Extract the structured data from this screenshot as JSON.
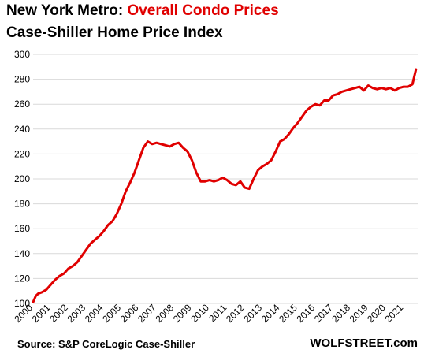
{
  "header": {
    "title_prefix": "New York Metro: ",
    "title_highlight": "Overall Condo Prices",
    "subtitle": "Case-Shiller Home Price Index"
  },
  "footer": {
    "source": "Source: S&P CoreLogic Case-Shiller",
    "brand": "WOLFSTREET.com"
  },
  "colors": {
    "line": "#e00000",
    "highlight": "#e00000",
    "grid": "#d9d9d9"
  },
  "chart_data": {
    "type": "line",
    "title": "New York Metro: Overall Condo Prices",
    "subtitle": "Case-Shiller Home Price Index",
    "ylim": [
      100,
      300
    ],
    "yticks": [
      100,
      120,
      140,
      160,
      180,
      200,
      220,
      240,
      260,
      280,
      300
    ],
    "xlim": [
      2000.0,
      2021.8
    ],
    "xticks": [
      "2000",
      "2001",
      "2002",
      "2003",
      "2004",
      "2005",
      "2006",
      "2007",
      "2008",
      "2009",
      "2010",
      "2011",
      "2012",
      "2013",
      "2014",
      "2015",
      "2016",
      "2017",
      "2018",
      "2019",
      "2020",
      "2021"
    ],
    "grid": true,
    "legend": "none",
    "series": [
      {
        "color": "#e00000",
        "x": [
          2000.0,
          2000.15,
          2000.3,
          2000.5,
          2000.75,
          2001.0,
          2001.25,
          2001.5,
          2001.75,
          2002.0,
          2002.25,
          2002.5,
          2002.75,
          2003.0,
          2003.25,
          2003.5,
          2003.75,
          2004.0,
          2004.25,
          2004.5,
          2004.75,
          2005.0,
          2005.25,
          2005.5,
          2005.75,
          2006.0,
          2006.25,
          2006.5,
          2006.75,
          2007.0,
          2007.25,
          2007.5,
          2007.75,
          2008.0,
          2008.25,
          2008.5,
          2008.75,
          2009.0,
          2009.25,
          2009.5,
          2009.75,
          2010.0,
          2010.25,
          2010.5,
          2010.75,
          2011.0,
          2011.25,
          2011.5,
          2011.75,
          2012.0,
          2012.25,
          2012.5,
          2012.75,
          2013.0,
          2013.25,
          2013.5,
          2013.75,
          2014.0,
          2014.25,
          2014.5,
          2014.75,
          2015.0,
          2015.25,
          2015.5,
          2015.75,
          2016.0,
          2016.25,
          2016.5,
          2016.75,
          2017.0,
          2017.25,
          2017.5,
          2017.75,
          2018.0,
          2018.25,
          2018.5,
          2018.75,
          2019.0,
          2019.25,
          2019.5,
          2019.75,
          2020.0,
          2020.25,
          2020.5,
          2020.75,
          2021.0,
          2021.25,
          2021.5,
          2021.7
        ],
        "y": [
          101,
          106,
          108,
          109,
          111,
          115,
          119,
          122,
          124,
          128,
          130,
          133,
          138,
          143,
          148,
          151,
          154,
          158,
          163,
          166,
          172,
          180,
          190,
          197,
          205,
          215,
          225,
          230,
          228,
          229,
          228,
          227,
          226,
          228,
          229,
          225,
          222,
          215,
          205,
          198,
          198,
          199,
          198,
          199,
          201,
          199,
          196,
          195,
          198,
          193,
          192,
          200,
          207,
          210,
          212,
          215,
          222,
          230,
          232,
          236,
          241,
          245,
          250,
          255,
          258,
          260,
          259,
          263,
          263,
          267,
          268,
          270,
          271,
          272,
          273,
          274,
          271,
          275,
          273,
          272,
          273,
          272,
          273,
          271,
          273,
          274,
          274,
          276,
          288
        ]
      }
    ]
  }
}
